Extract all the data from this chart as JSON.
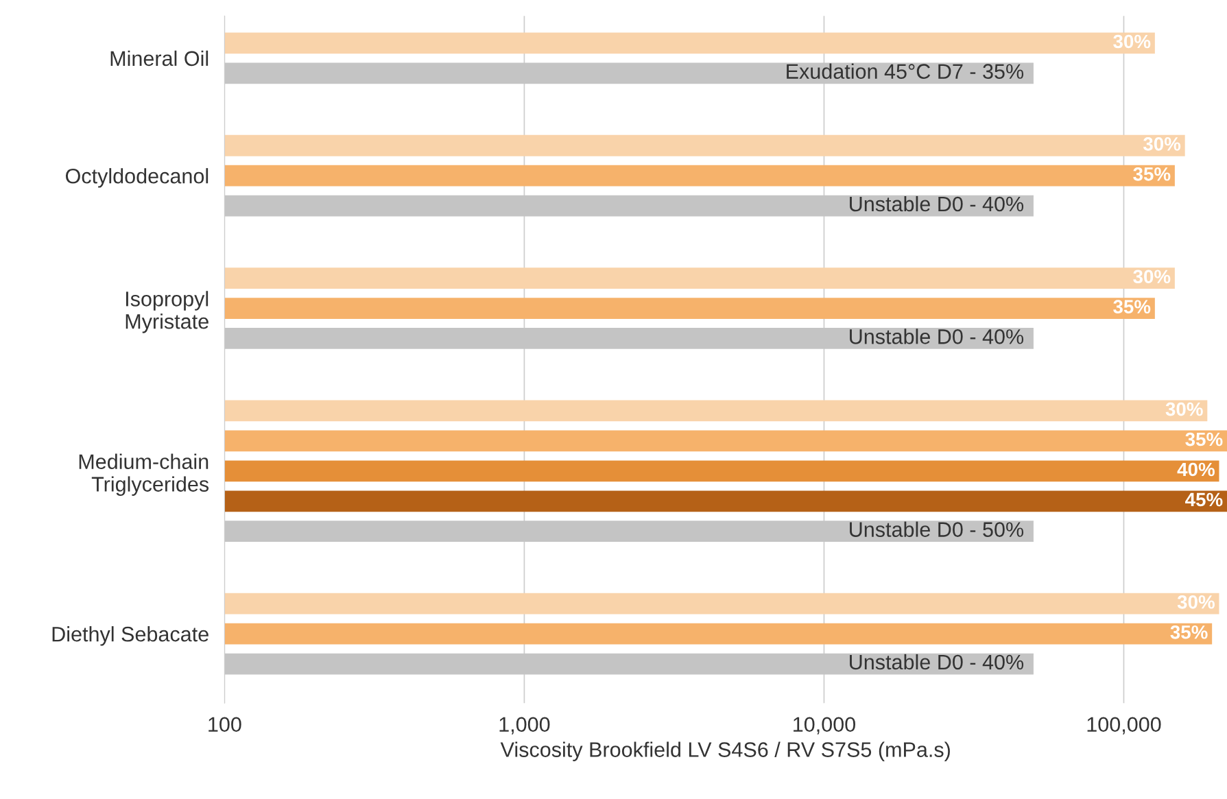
{
  "chart_data": {
    "type": "bar",
    "orientation": "horizontal",
    "log": "x",
    "categories": [
      "Mineral Oil",
      "Octyldodecanol",
      "Isopropyl\nMyristate",
      "Medium-chain\nTriglycerides",
      "Diethyl Sebacate"
    ],
    "series": [
      {
        "name": "30%",
        "color": "#f9d3aa",
        "values": [
          127000,
          160000,
          148000,
          190000,
          208000
        ]
      },
      {
        "name": "35%",
        "color": "#f6b26b",
        "values": [
          null,
          148000,
          127000,
          221000,
          197000
        ]
      },
      {
        "name": "40%",
        "color": "#e58f38",
        "values": [
          null,
          null,
          null,
          208000,
          null
        ]
      },
      {
        "name": "45%",
        "color": "#b56117",
        "values": [
          null,
          null,
          null,
          221000,
          null
        ]
      },
      {
        "color": "#c4c4c4",
        "values": [
          50000,
          50000,
          50000,
          50000,
          50000
        ]
      }
    ],
    "annotations": [
      "Exudation 45°C D7 - 35%",
      "Unstable D0 - 40%",
      "Unstable D0 - 40%",
      "Unstable D0 - 50%",
      "Unstable D0 - 40%"
    ],
    "xlabel": "Viscosity Brookfield LV S4S6 / RV S7S5 (mPa.s)",
    "xlim": [
      100,
      221000
    ],
    "xticks": [
      100,
      {
        "value": 1000,
        "label": "1,000"
      },
      {
        "value": 10000,
        "label": "10,000"
      },
      {
        "value": 100000,
        "label": "100,000"
      }
    ],
    "grid": "x",
    "legend": false
  }
}
